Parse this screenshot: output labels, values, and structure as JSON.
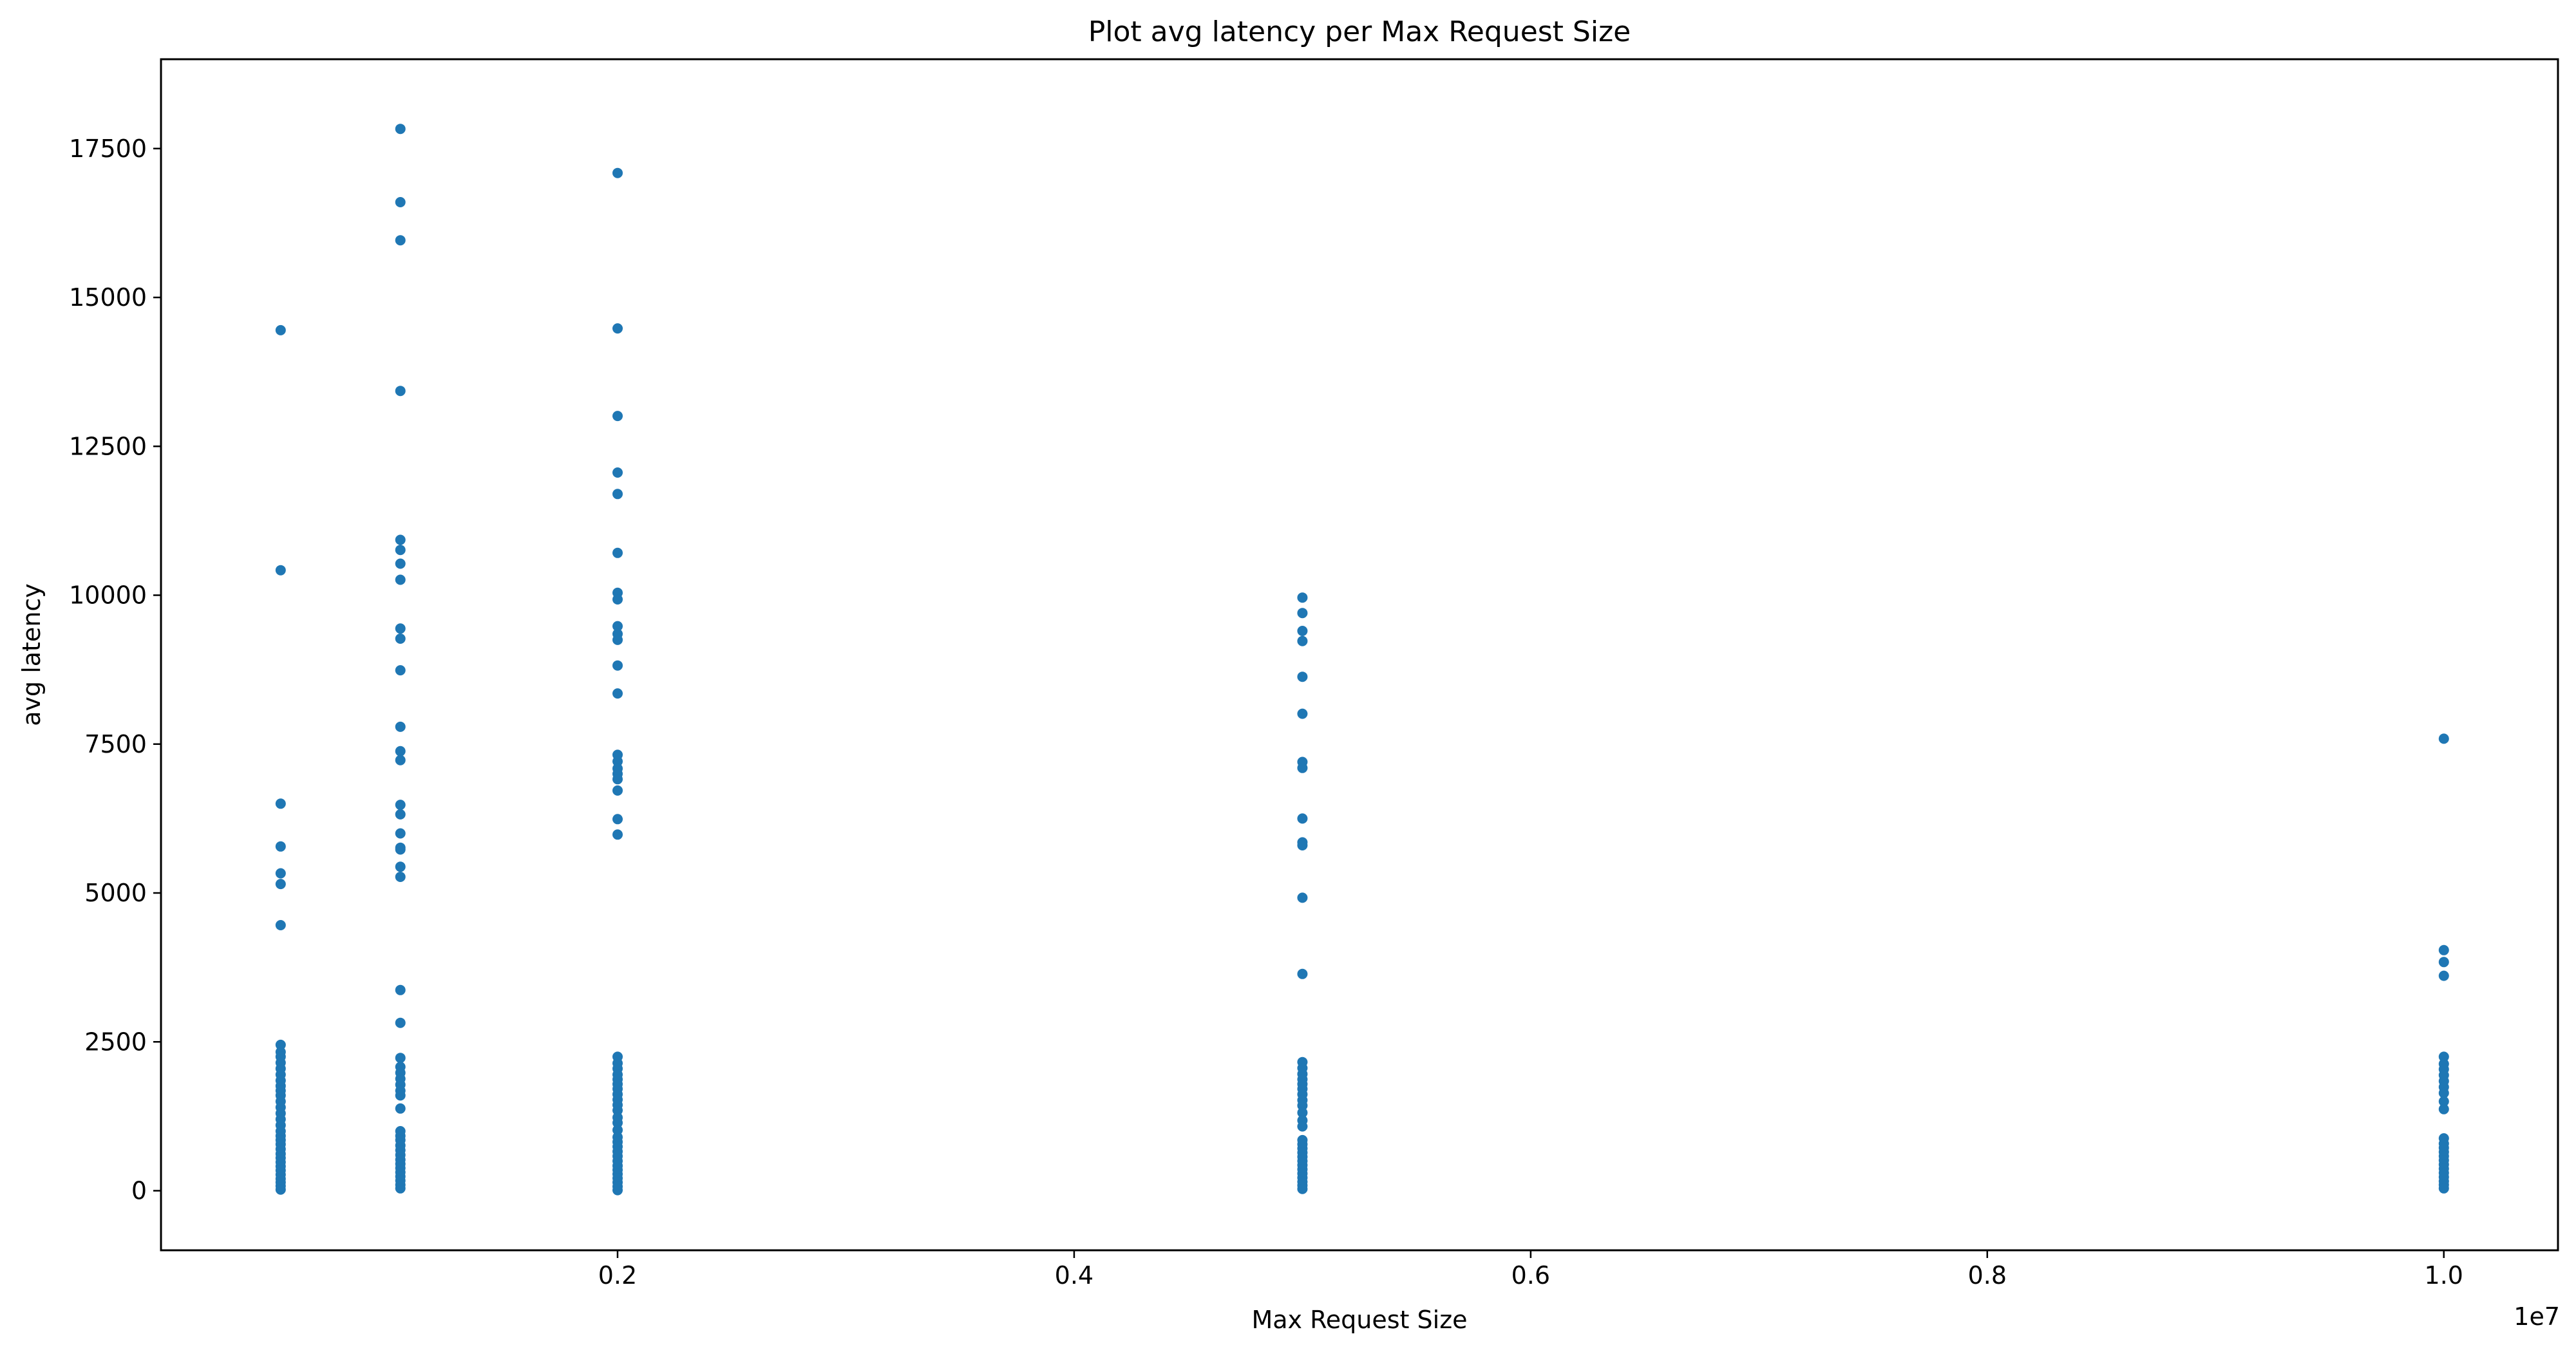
{
  "chart_data": {
    "type": "scatter",
    "title": "Plot avg latency per Max Request Size",
    "xlabel": "Max Request Size",
    "ylabel": "avg latency",
    "x_offset_label": "1e7",
    "x_scale": 10000000,
    "xlim": [
      0,
      10500000
    ],
    "ylim": [
      -1000,
      19000
    ],
    "x_ticks": [
      0.2,
      0.4,
      0.6,
      0.8,
      1.0
    ],
    "x_tick_labels": [
      "0.2",
      "0.4",
      "0.6",
      "0.8",
      "1.0"
    ],
    "y_ticks": [
      0,
      2500,
      5000,
      7500,
      10000,
      12500,
      15000,
      17500
    ],
    "y_tick_labels": [
      "0",
      "2500",
      "5000",
      "7500",
      "10000",
      "12500",
      "15000",
      "17500"
    ],
    "grid": false,
    "marker_color": "#1f77b4",
    "series": [
      {
        "x_value": 524288,
        "y_values": [
          14450,
          10420,
          6500,
          5780,
          5330,
          5150,
          4460,
          2450,
          2330,
          2250,
          2150,
          2050,
          1950,
          1850,
          1760,
          1680,
          1600,
          1500,
          1400,
          1300,
          1200,
          1100,
          1000,
          920,
          850,
          780,
          700,
          620,
          550,
          480,
          410,
          340,
          270,
          200,
          140,
          80,
          20
        ]
      },
      {
        "x_value": 1048576,
        "y_values": [
          17830,
          16600,
          15960,
          13430,
          10930,
          10760,
          10530,
          10260,
          9440,
          9270,
          8740,
          7790,
          7380,
          7230,
          6480,
          6320,
          6000,
          5760,
          5730,
          5440,
          5270,
          3370,
          2820,
          2230,
          2080,
          1980,
          1880,
          1780,
          1680,
          1600,
          1380,
          1000,
          920,
          850,
          760,
          680,
          600,
          520,
          450,
          380,
          310,
          240,
          170,
          100,
          40
        ]
      },
      {
        "x_value": 2000000,
        "y_values": [
          17090,
          14480,
          13010,
          12060,
          11700,
          10710,
          10040,
          9930,
          9480,
          9350,
          9250,
          8820,
          8350,
          7320,
          7210,
          7090,
          7000,
          6910,
          6720,
          6240,
          5980,
          2250,
          2140,
          2050,
          1950,
          1870,
          1790,
          1710,
          1620,
          1530,
          1440,
          1350,
          1230,
          1140,
          1020,
          900,
          820,
          740,
          660,
          580,
          500,
          420,
          350,
          280,
          210,
          140,
          70,
          10
        ]
      },
      {
        "x_value": 5000000,
        "y_values": [
          9960,
          9700,
          9400,
          9230,
          8630,
          8010,
          7200,
          7100,
          6250,
          5850,
          5800,
          4920,
          3640,
          2160,
          2060,
          1960,
          1870,
          1790,
          1710,
          1620,
          1520,
          1430,
          1310,
          1180,
          1080,
          850,
          780,
          710,
          640,
          570,
          500,
          430,
          360,
          290,
          220,
          150,
          90,
          30
        ]
      },
      {
        "x_value": 10000000,
        "y_values": [
          7590,
          4040,
          3840,
          3610,
          2250,
          2130,
          2040,
          1940,
          1840,
          1740,
          1640,
          1500,
          1370,
          880,
          790,
          720,
          650,
          580,
          510,
          440,
          370,
          300,
          230,
          160,
          100,
          40
        ]
      }
    ]
  }
}
